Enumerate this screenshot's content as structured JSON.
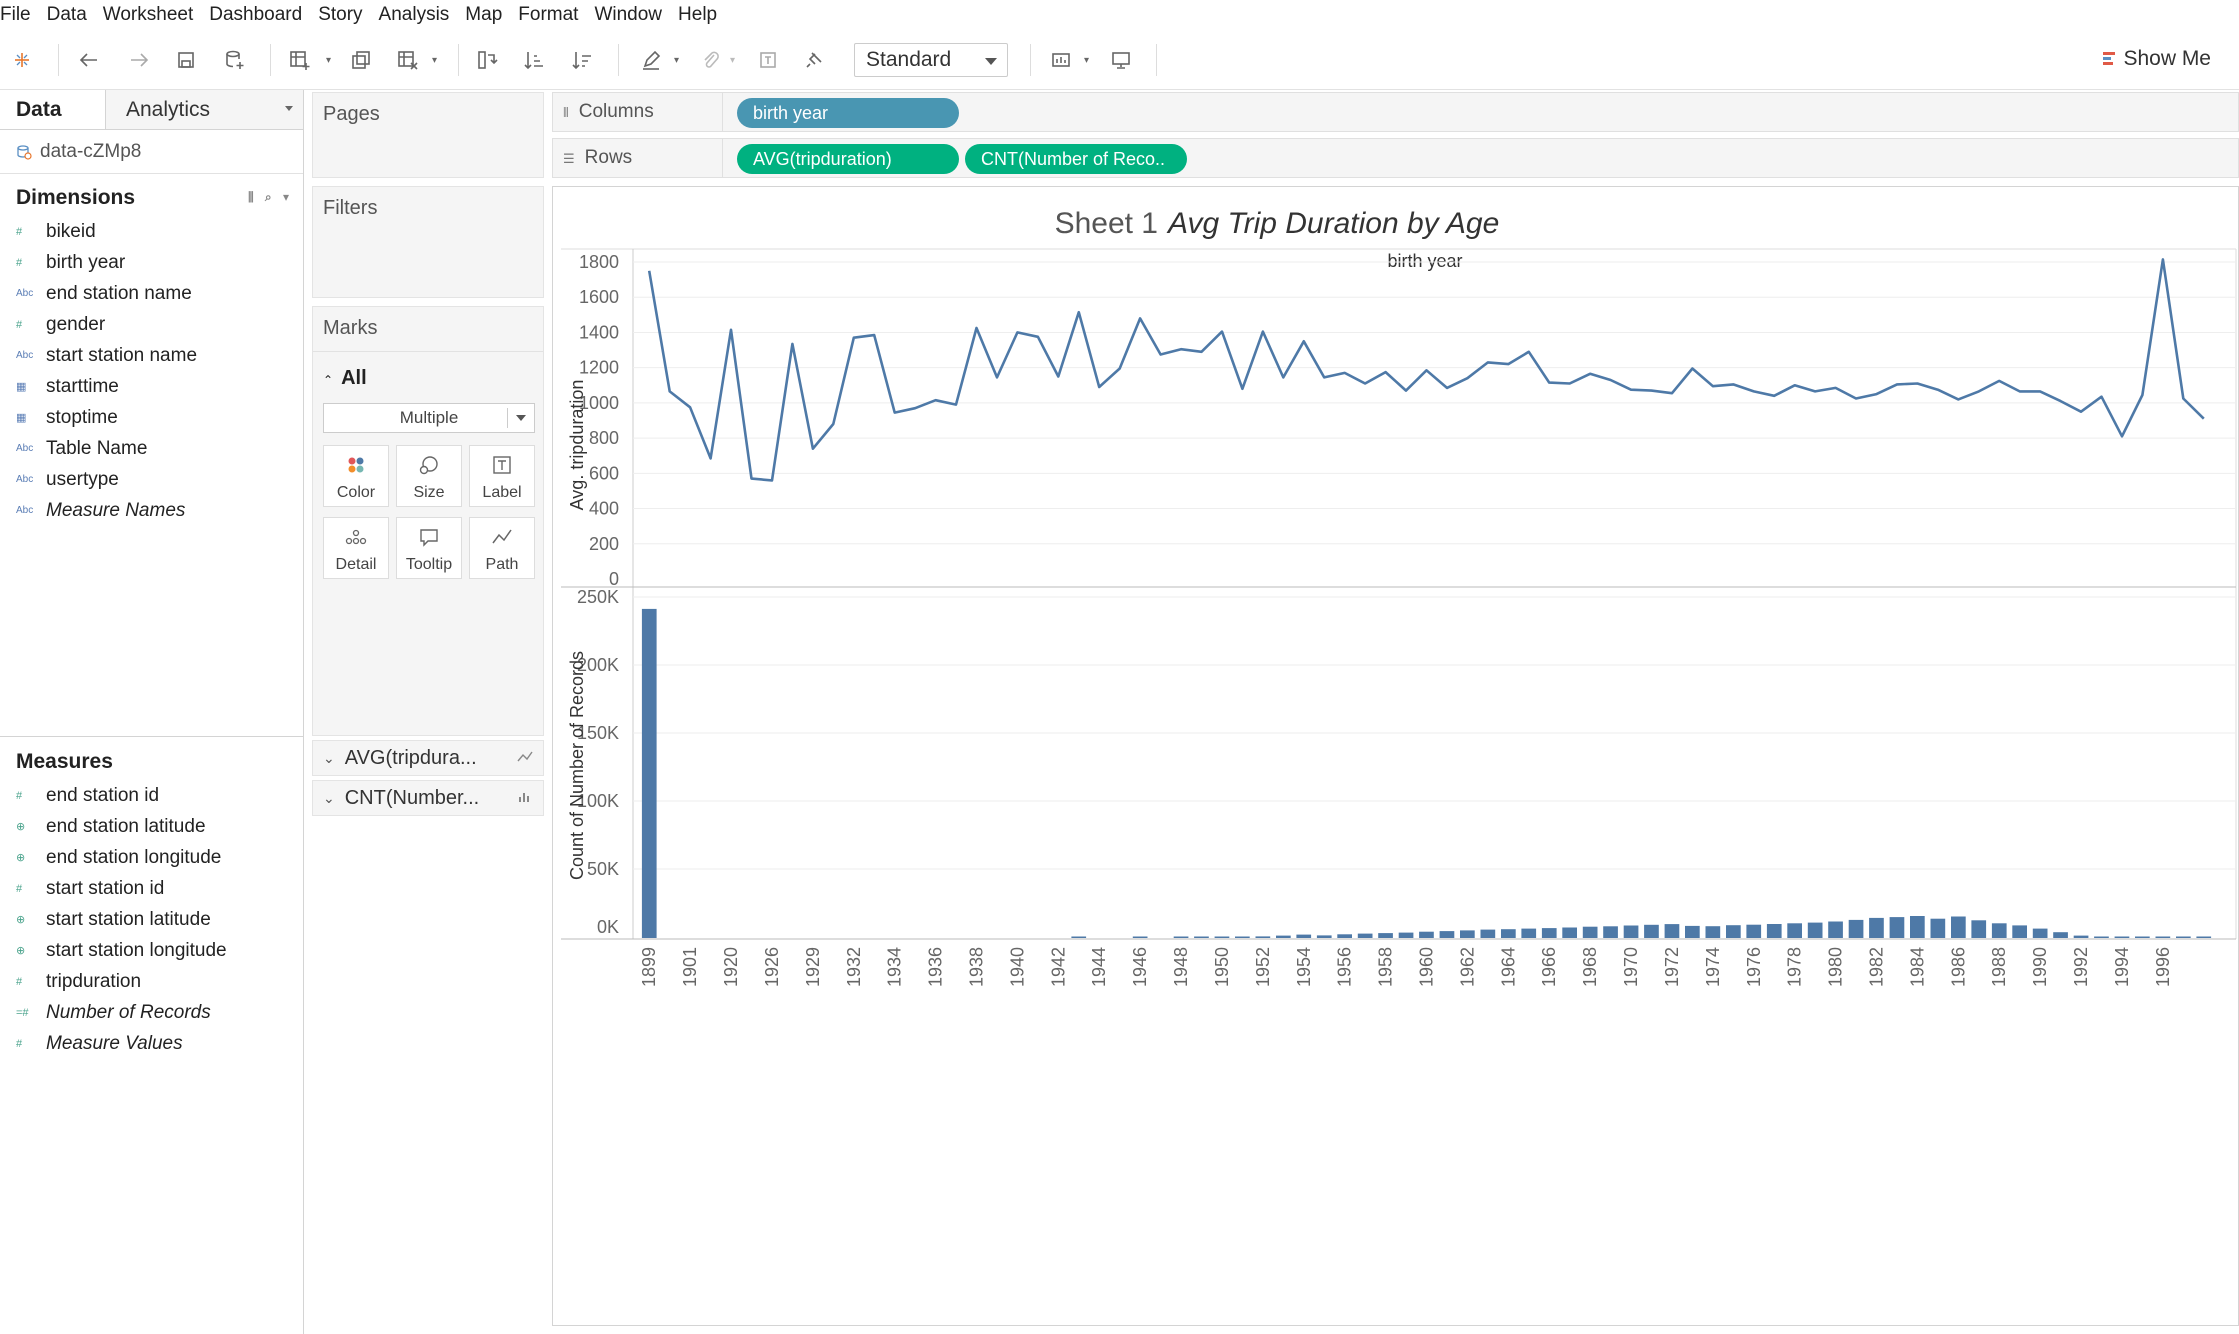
{
  "menu": [
    "File",
    "Data",
    "Worksheet",
    "Dashboard",
    "Story",
    "Analysis",
    "Map",
    "Format",
    "Window",
    "Help"
  ],
  "toolbar": {
    "fit_select": "Standard",
    "show_me": "Show Me",
    "icons": [
      "tableau-logo-icon",
      "undo-icon",
      "redo-icon",
      "save-icon",
      "add-datasource-icon",
      "new-worksheet-icon",
      "duplicate-icon",
      "clear-icon",
      "swap-icon",
      "sort-ascending-icon",
      "sort-descending-icon",
      "highlight-icon",
      "group-icon",
      "label-icon",
      "pin-icon",
      "chart-type-icon",
      "presentation-icon"
    ]
  },
  "data_pane": {
    "tab_data": "Data",
    "tab_analytics": "Analytics",
    "datasource": "data-cZMp8",
    "dimensions_title": "Dimensions",
    "dimensions": [
      {
        "label": "bikeid",
        "type": "#"
      },
      {
        "label": "birth year",
        "type": "#"
      },
      {
        "label": "end station name",
        "type": "Abc"
      },
      {
        "label": "gender",
        "type": "#"
      },
      {
        "label": "start station name",
        "type": "Abc"
      },
      {
        "label": "starttime",
        "type": "cal"
      },
      {
        "label": "stoptime",
        "type": "cal"
      },
      {
        "label": "Table Name",
        "type": "Abc"
      },
      {
        "label": "usertype",
        "type": "Abc"
      },
      {
        "label": "Measure Names",
        "type": "Abc",
        "italic": true
      }
    ],
    "measures_title": "Measures",
    "measures": [
      {
        "label": "end station id",
        "type": "#"
      },
      {
        "label": "end station latitude",
        "type": "geo"
      },
      {
        "label": "end station longitude",
        "type": "geo"
      },
      {
        "label": "start station id",
        "type": "#"
      },
      {
        "label": "start station latitude",
        "type": "geo"
      },
      {
        "label": "start station longitude",
        "type": "geo"
      },
      {
        "label": "tripduration",
        "type": "#"
      },
      {
        "label": "Number of Records",
        "type": "=#",
        "italic": true
      },
      {
        "label": "Measure Values",
        "type": "#",
        "italic": true
      }
    ]
  },
  "cards": {
    "pages": "Pages",
    "filters": "Filters",
    "marks": "Marks",
    "marks_all": "All",
    "mark_type": "Multiple",
    "buttons": [
      "Color",
      "Size",
      "Label",
      "Detail",
      "Tooltip",
      "Path"
    ],
    "measure_cards": [
      "AVG(tripdura...",
      "CNT(Number..."
    ]
  },
  "shelves": {
    "columns_label": "Columns",
    "rows_label": "Rows",
    "columns_pills": [
      "birth year"
    ],
    "rows_pills": [
      "AVG(tripduration)",
      "CNT(Number of Reco.."
    ]
  },
  "sheet": {
    "title_prefix": "Sheet 1",
    "title_main": "Avg Trip Duration  by Age",
    "header": "birth year"
  },
  "chart_data": [
    {
      "type": "line",
      "ylabel": "Avg. tripduration",
      "ylim": [
        0,
        1900
      ],
      "yticks": [
        0,
        200,
        400,
        600,
        800,
        1000,
        1200,
        1400,
        1600,
        1800
      ],
      "grid": true,
      "color": "#4e79a7",
      "values": [
        1750,
        1065,
        975,
        685,
        1415,
        570,
        560,
        1335,
        740,
        880,
        1370,
        1385,
        945,
        970,
        1015,
        990,
        1425,
        1145,
        1400,
        1375,
        1150,
        1515,
        1090,
        1195,
        1480,
        1275,
        1305,
        1290,
        1405,
        1080,
        1405,
        1145,
        1350,
        1145,
        1170,
        1110,
        1175,
        1070,
        1185,
        1085,
        1140,
        1230,
        1220,
        1290,
        1115,
        1110,
        1165,
        1130,
        1075,
        1070,
        1055,
        1195,
        1095,
        1105,
        1065,
        1040,
        1100,
        1065,
        1085,
        1025,
        1050,
        1105,
        1110,
        1075,
        1020,
        1065,
        1125,
        1065,
        1065,
        1010,
        950,
        1035,
        810,
        1045,
        1815,
        1025,
        910
      ]
    },
    {
      "type": "bar",
      "ylabel": "Count of Number of Records",
      "ylim": [
        0,
        255000
      ],
      "yticks": [
        0,
        50000,
        100000,
        150000,
        200000,
        250000
      ],
      "ytick_labels": [
        "0K",
        "50K",
        "100K",
        "150K",
        "200K",
        "250K"
      ],
      "grid": true,
      "color": "#4e79a7",
      "x_tick_labels": [
        "1899",
        "1901",
        "1920",
        "1926",
        "1929",
        "1932",
        "1934",
        "1936",
        "1938",
        "1940",
        "1942",
        "1944",
        "1946",
        "1948",
        "1950",
        "1952",
        "1954",
        "1956",
        "1958",
        "1960",
        "1962",
        "1964",
        "1966",
        "1968",
        "1970",
        "1972",
        "1974",
        "1976",
        "1978",
        "1980",
        "1982",
        "1984",
        "1986",
        "1988",
        "1990",
        "1992",
        "1994",
        "1996"
      ],
      "values": [
        242000,
        0,
        0,
        0,
        0,
        0,
        0,
        0,
        0,
        0,
        0,
        0,
        0,
        0,
        0,
        0,
        0,
        0,
        0,
        0,
        0,
        400,
        0,
        0,
        400,
        0,
        400,
        500,
        700,
        900,
        1200,
        1800,
        2500,
        1900,
        2700,
        3200,
        3600,
        4000,
        4600,
        5100,
        5600,
        6200,
        6500,
        6900,
        7300,
        7700,
        8300,
        8600,
        9200,
        9700,
        10200,
        8900,
        8700,
        9400,
        9800,
        10300,
        10800,
        11300,
        12100,
        13300,
        14800,
        15400,
        16200,
        14200,
        15800,
        13000,
        10800,
        9300,
        6900,
        4300,
        1800,
        800,
        400,
        300,
        500,
        300,
        200
      ]
    }
  ]
}
